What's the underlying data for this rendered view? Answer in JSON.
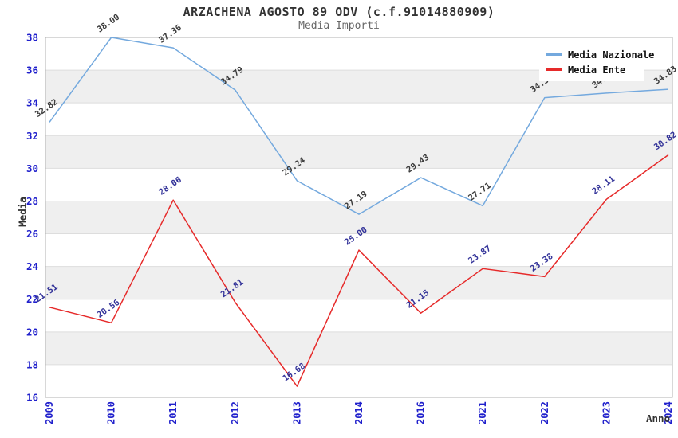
{
  "chart_data": {
    "type": "line",
    "title": "ARZACHENA AGOSTO 89 ODV (c.f.91014880909)",
    "subtitle": "Media Importi",
    "xlabel": "Anno",
    "ylabel": "Media",
    "categories": [
      "2009",
      "2010",
      "2011",
      "2012",
      "2013",
      "2014",
      "2016",
      "2021",
      "2022",
      "2023",
      "2024"
    ],
    "series": [
      {
        "name": "Media Nazionale",
        "color": "#74A9DE",
        "label_color": "#3C3C3C",
        "values": [
          32.82,
          38.0,
          37.36,
          34.79,
          29.24,
          27.19,
          29.43,
          27.71,
          34.32,
          34.6,
          34.83
        ]
      },
      {
        "name": "Media Ente",
        "color": "#E62A2A",
        "label_color": "#333399",
        "values": [
          21.51,
          20.56,
          28.06,
          21.81,
          16.68,
          25.0,
          21.15,
          23.87,
          23.38,
          28.11,
          30.82
        ]
      }
    ],
    "ylim": [
      16,
      38
    ],
    "ytick_step": 2,
    "y_ticks": [
      16,
      18,
      20,
      22,
      24,
      26,
      28,
      30,
      32,
      34,
      36,
      38
    ],
    "grid": true,
    "banded": true,
    "legend_position": "top-right",
    "axis_tick_color": "#2121CC",
    "band_color": "#EFEFEF",
    "grid_color": "#DDDDDD",
    "border_color": "#B0B0B0"
  }
}
